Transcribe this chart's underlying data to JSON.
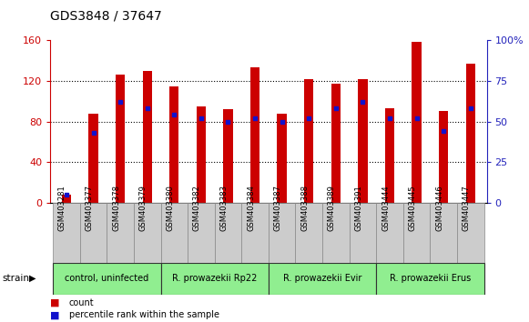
{
  "title": "GDS3848 / 37647",
  "samples": [
    "GSM403281",
    "GSM403377",
    "GSM403378",
    "GSM403379",
    "GSM403380",
    "GSM403382",
    "GSM403383",
    "GSM403384",
    "GSM403387",
    "GSM403388",
    "GSM403389",
    "GSM403391",
    "GSM403444",
    "GSM403445",
    "GSM403446",
    "GSM403447"
  ],
  "counts": [
    8,
    88,
    126,
    130,
    115,
    95,
    92,
    133,
    88,
    122,
    117,
    122,
    93,
    158,
    90,
    137
  ],
  "percentile_ranks": [
    5,
    43,
    62,
    58,
    54,
    52,
    50,
    52,
    50,
    52,
    58,
    62,
    52,
    52,
    44,
    58
  ],
  "groups": [
    {
      "label": "control, uninfected",
      "start": 0,
      "end": 3
    },
    {
      "label": "R. prowazekii Rp22",
      "start": 4,
      "end": 7
    },
    {
      "label": "R. prowazekii Evir",
      "start": 8,
      "end": 11
    },
    {
      "label": "R. prowazekii Erus",
      "start": 12,
      "end": 15
    }
  ],
  "ylim_left": [
    0,
    160
  ],
  "ylim_right": [
    0,
    100
  ],
  "yticks_left": [
    0,
    40,
    80,
    120,
    160
  ],
  "yticks_right": [
    0,
    25,
    50,
    75,
    100
  ],
  "bar_color": "#cc0000",
  "dot_color": "#1111cc",
  "grid_color": "#000000",
  "bar_width": 0.35,
  "group_color": "#90ee90",
  "sample_box_color": "#cccccc",
  "xlabel_color": "#cc0000",
  "ylabel_right_color": "#2222bb",
  "legend_count_color": "#cc0000",
  "legend_dot_color": "#1111cc",
  "title_fontsize": 10,
  "tick_fontsize": 8,
  "sample_fontsize": 6,
  "group_fontsize": 7,
  "legend_fontsize": 7
}
